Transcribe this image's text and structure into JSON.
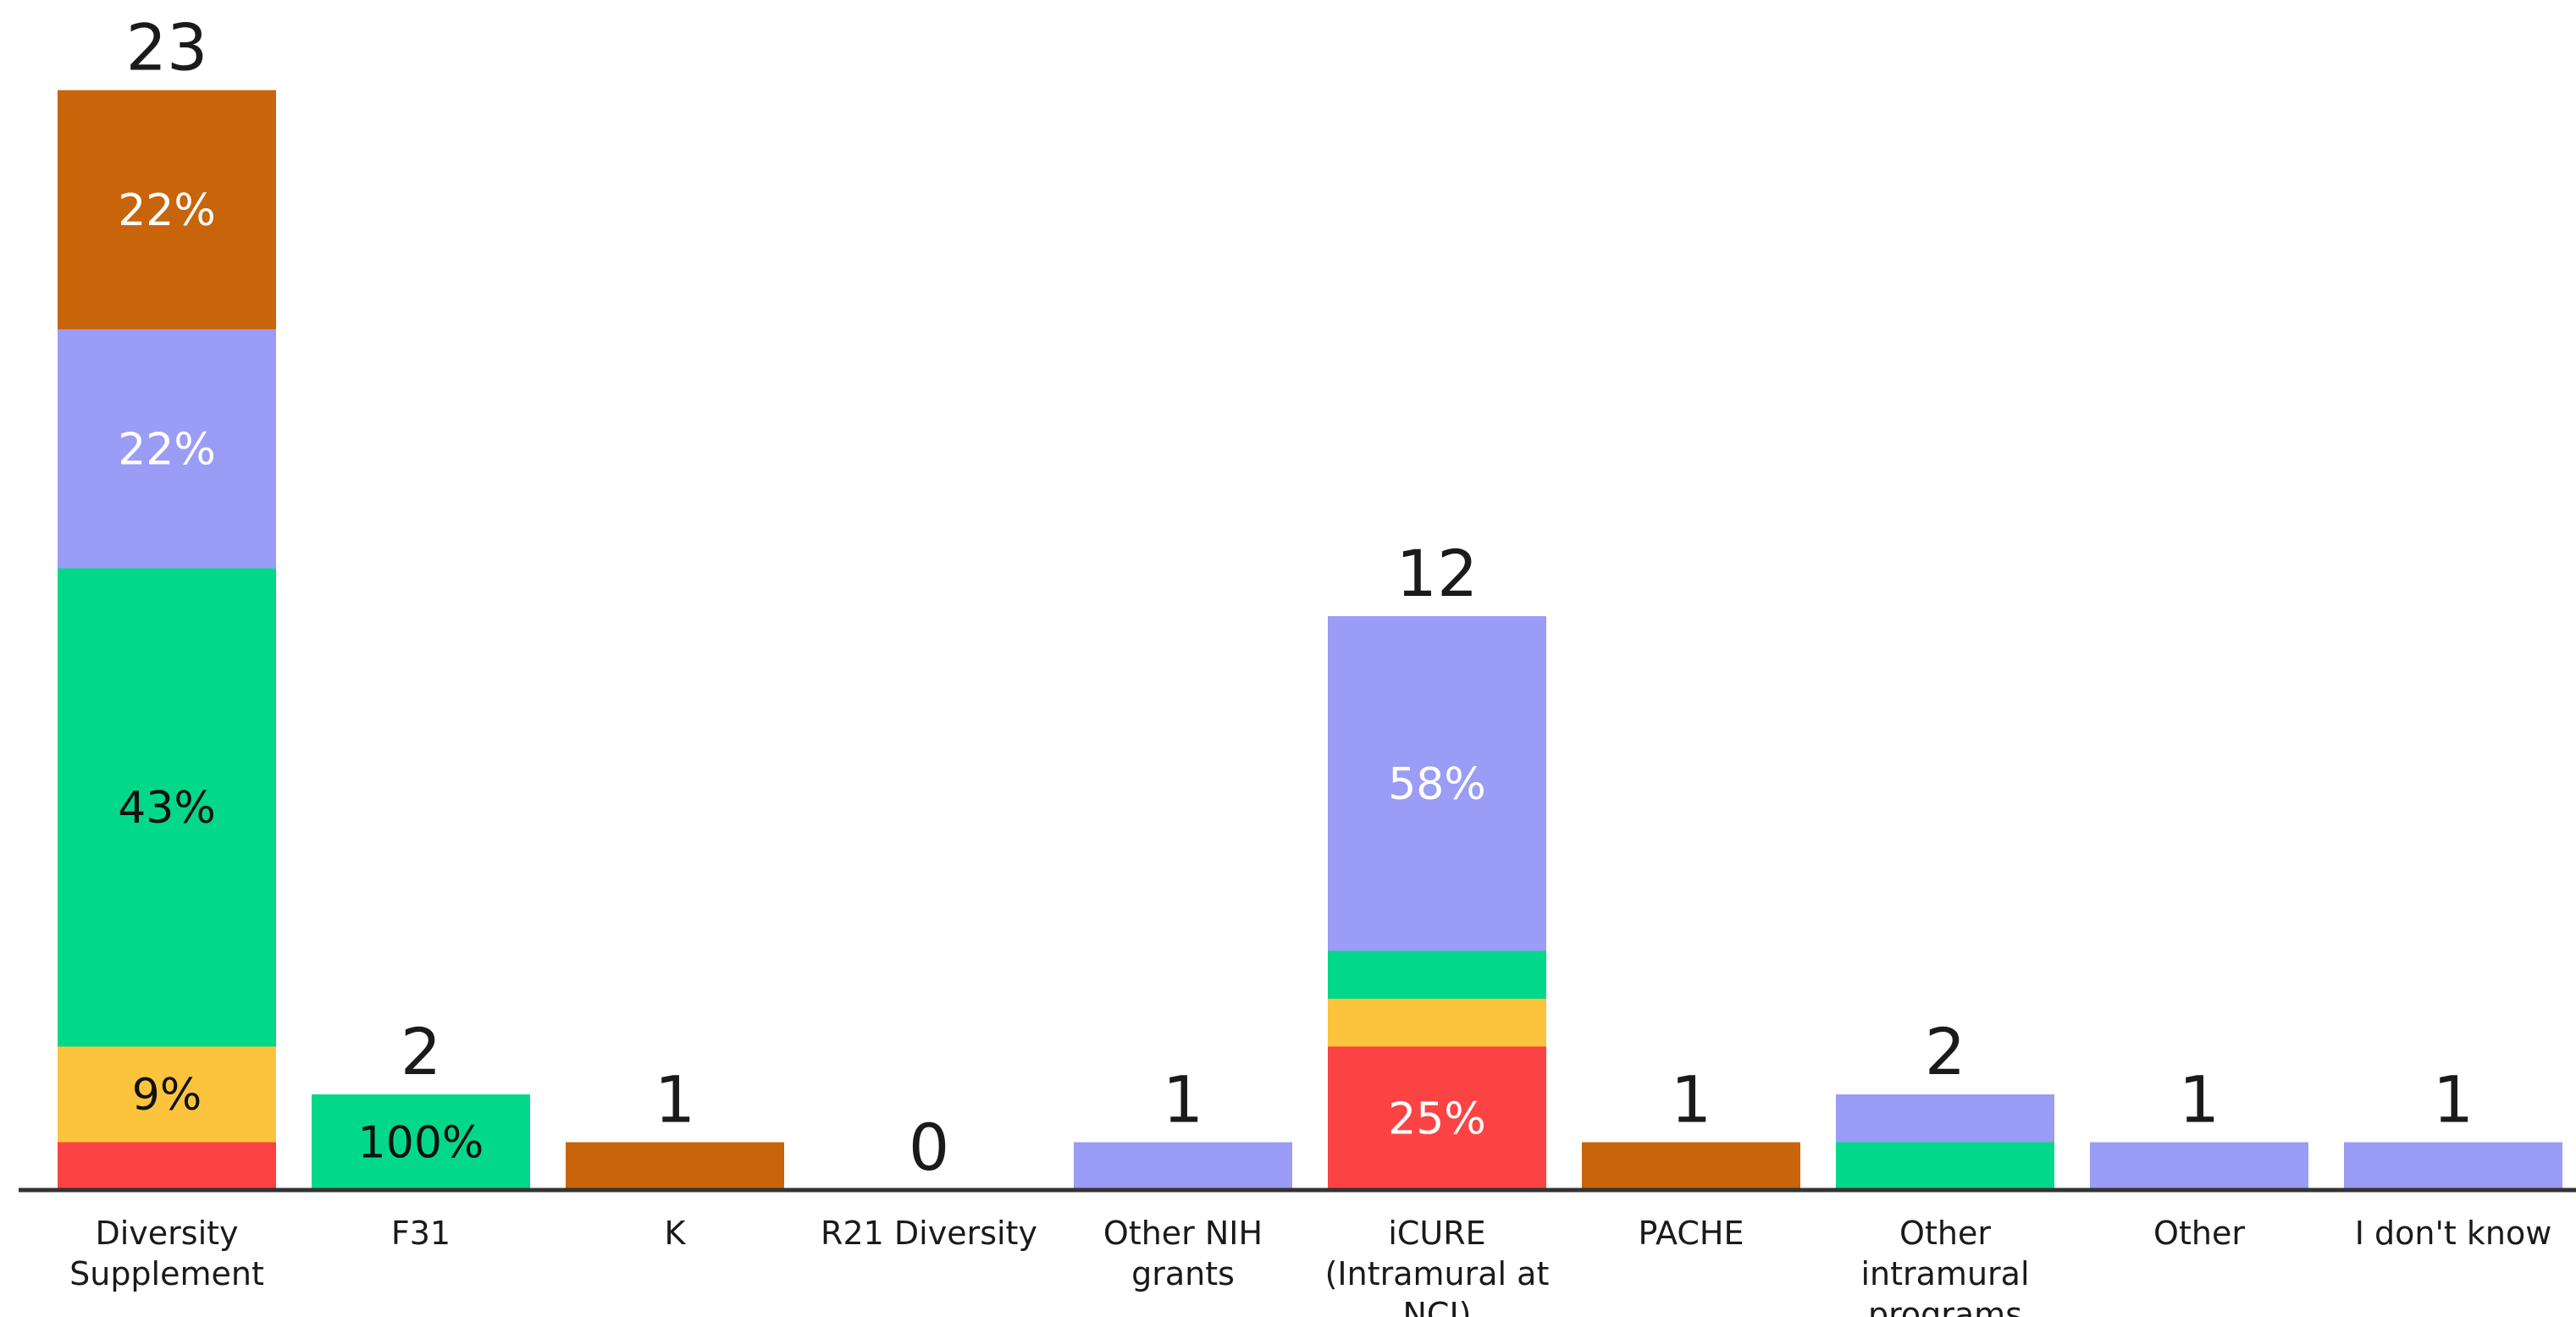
{
  "chart_data": {
    "type": "bar",
    "stacked": true,
    "categories": [
      [
        "Diversity",
        "Supplement"
      ],
      [
        "F31"
      ],
      [
        "K"
      ],
      [
        "R21 Diversity"
      ],
      [
        "Other NIH",
        "grants"
      ],
      [
        "iCURE",
        "(Intramural at",
        "NCI)"
      ],
      [
        "PACHE"
      ],
      [
        "Other",
        "intramural",
        "programs"
      ],
      [
        "Other"
      ],
      [
        "I don't know"
      ]
    ],
    "totals": [
      23,
      2,
      1,
      0,
      1,
      12,
      1,
      2,
      1,
      1
    ],
    "segment_order_bottom_to_top": [
      "red",
      "yellow",
      "green",
      "lavender",
      "orange"
    ],
    "colors": {
      "red": "#fb4343",
      "yellow": "#fcc43c",
      "green": "#02d88a",
      "lavender": "#9a9cf5",
      "orange": "#c8640a"
    },
    "label_colors": {
      "red": "#ffffff",
      "yellow": "#111111",
      "green": "#111111",
      "lavender": "#ffffff",
      "orange": "#ffffff"
    },
    "segments": [
      {
        "red": 1,
        "yellow": 2,
        "green": 10,
        "lavender": 5,
        "orange": 5
      },
      {
        "red": 0,
        "yellow": 0,
        "green": 2,
        "lavender": 0,
        "orange": 0
      },
      {
        "red": 0,
        "yellow": 0,
        "green": 0,
        "lavender": 0,
        "orange": 1
      },
      {
        "red": 0,
        "yellow": 0,
        "green": 0,
        "lavender": 0,
        "orange": 0
      },
      {
        "red": 0,
        "yellow": 0,
        "green": 0,
        "lavender": 1,
        "orange": 0
      },
      {
        "red": 3,
        "yellow": 1,
        "green": 1,
        "lavender": 7,
        "orange": 0
      },
      {
        "red": 0,
        "yellow": 0,
        "green": 0,
        "lavender": 0,
        "orange": 1
      },
      {
        "red": 0,
        "yellow": 0,
        "green": 1,
        "lavender": 1,
        "orange": 0
      },
      {
        "red": 0,
        "yellow": 0,
        "green": 0,
        "lavender": 1,
        "orange": 0
      },
      {
        "red": 0,
        "yellow": 0,
        "green": 0,
        "lavender": 1,
        "orange": 0
      }
    ],
    "segment_labels": [
      {
        "yellow": "9%",
        "green": "43%",
        "lavender": "22%",
        "orange": "22%"
      },
      {
        "green": "100%"
      },
      {},
      {},
      {},
      {
        "red": "25%",
        "lavender": "58%"
      },
      {},
      {},
      {},
      {}
    ],
    "ylim": [
      0,
      23
    ],
    "grid": false,
    "legend": "none"
  }
}
